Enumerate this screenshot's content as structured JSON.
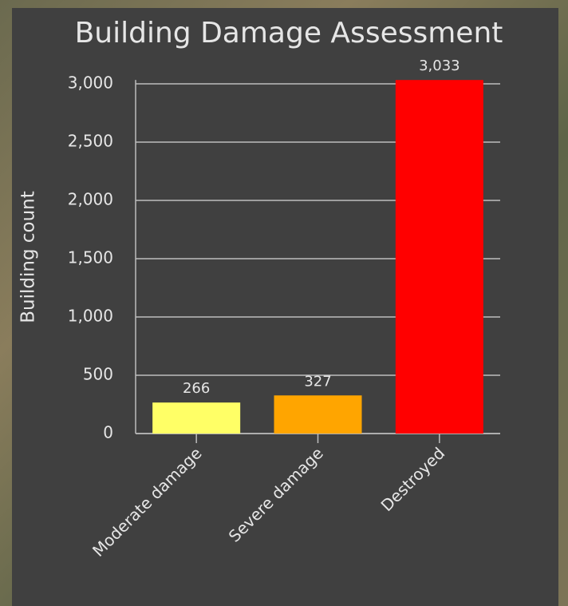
{
  "chart_data": {
    "type": "bar",
    "title": "Building Damage Assessment",
    "y_label": "Building count",
    "categories": [
      "Moderate damage",
      "Severe damage",
      "Destroyed"
    ],
    "values": [
      266,
      327,
      3033
    ],
    "value_labels": [
      "266",
      "327",
      "3,033"
    ],
    "colors": [
      "#ffff66",
      "#ffa500",
      "#ff0000"
    ],
    "ylim": [
      0,
      3033
    ],
    "yticks": [
      0,
      500,
      {
        "value": 1000,
        "label": "1,000"
      },
      {
        "value": 1500,
        "label": "1,500"
      },
      {
        "value": 2000,
        "label": "2,000"
      },
      {
        "value": 2500,
        "label": "2,500"
      },
      {
        "value": 3000,
        "label": "3,000"
      }
    ],
    "grid": true
  }
}
